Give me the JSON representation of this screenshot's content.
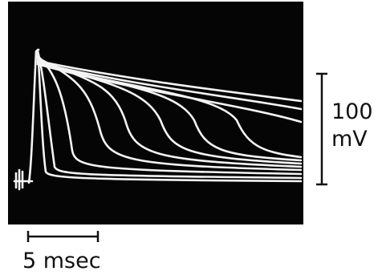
{
  "scale_bars": {
    "vertical": {
      "value_label": "100",
      "unit_label": "mV"
    },
    "horizontal": {
      "label": "5 msec"
    }
  }
}
